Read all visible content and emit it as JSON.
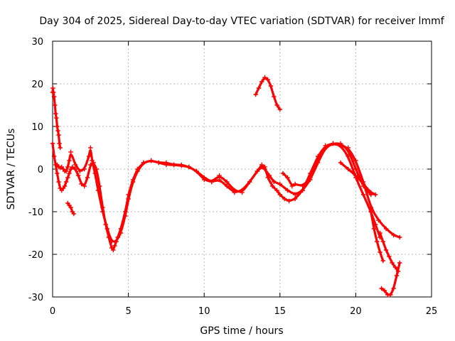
{
  "chart_data": {
    "type": "scatter",
    "title": "Day 304 of 2025, Sidereal Day-to-day VTEC variation (SDTVAR) for receiver lmmf",
    "xlabel": "GPS time / hours",
    "ylabel": "SDTVAR / TECUs",
    "xlim": [
      0,
      25
    ],
    "ylim": [
      -30,
      30
    ],
    "xticks": [
      0,
      5,
      10,
      15,
      20,
      25
    ],
    "yticks": [
      -30,
      -20,
      -10,
      0,
      10,
      20,
      30
    ],
    "xtick_labels": [
      "0",
      "5",
      "10",
      "15",
      "20",
      "25"
    ],
    "ytick_labels": [
      "-30",
      "-20",
      "-10",
      "0",
      "10",
      "20",
      "30"
    ],
    "grid": true,
    "legend": "none",
    "marker": "plus",
    "color": "#ff0000",
    "series": [
      {
        "name": "track-main",
        "x": [
          0.0,
          0.1,
          0.2,
          0.3,
          0.4,
          0.5,
          0.6,
          0.7,
          0.8,
          0.9,
          1.0,
          1.1,
          1.2,
          1.3,
          1.5,
          1.7,
          1.9,
          2.1,
          2.3,
          2.5,
          2.7,
          2.9,
          3.1,
          3.3,
          3.5,
          3.7,
          3.9,
          4.0,
          4.1,
          4.3,
          4.5,
          4.8,
          5.0,
          5.3,
          5.6,
          6.0,
          6.5,
          7.0,
          7.5,
          8.0,
          8.5,
          9.0,
          9.5,
          10.0,
          10.5,
          11.0,
          11.5,
          12.0,
          12.5,
          13.0,
          13.5,
          13.8,
          14.0,
          14.2,
          14.5,
          14.8,
          15.0,
          15.3,
          15.6,
          16.0,
          16.5,
          17.0,
          17.5,
          18.0,
          18.5,
          19.0,
          19.5,
          20.0,
          20.5,
          21.0,
          21.3,
          21.6
        ],
        "y": [
          6.0,
          3.0,
          1.0,
          -1.0,
          -3.0,
          -4.5,
          -5.0,
          -4.5,
          -4.0,
          -3.0,
          -2.0,
          -1.0,
          0.0,
          0.5,
          0.0,
          -1.5,
          -3.5,
          -4.0,
          -2.0,
          1.0,
          1.5,
          0.0,
          -4.0,
          -9.0,
          -13.0,
          -16.0,
          -18.5,
          -19.0,
          -18.0,
          -16.0,
          -14.0,
          -10.0,
          -6.0,
          -2.5,
          0.0,
          1.5,
          2.0,
          1.5,
          1.0,
          1.0,
          0.8,
          0.5,
          -0.5,
          -2.0,
          -3.0,
          -2.5,
          -4.0,
          -5.5,
          -5.0,
          -3.0,
          -0.5,
          1.0,
          0.5,
          -2.0,
          -4.0,
          -5.0,
          -6.0,
          -7.0,
          -7.5,
          -7.0,
          -5.0,
          -1.0,
          3.0,
          5.5,
          6.0,
          5.5,
          3.0,
          -2.0,
          -6.0,
          -10.0,
          -13.0,
          -16.0
        ]
      },
      {
        "name": "track-secondary",
        "x": [
          0.3,
          0.4,
          0.5,
          0.6,
          0.7,
          0.8,
          0.9,
          1.0,
          1.1,
          1.2,
          1.5,
          1.8,
          2.1,
          2.4,
          2.5,
          2.6,
          2.8,
          3.0,
          3.3,
          3.6,
          3.9,
          4.2,
          4.5,
          4.8,
          5.0,
          5.3,
          5.6,
          6.0,
          6.5,
          7.0,
          7.5,
          8.0,
          8.5,
          9.0,
          9.5,
          10.0,
          10.5,
          11.0,
          11.5,
          12.0,
          12.5,
          13.0,
          13.5,
          13.8,
          14.0,
          14.3,
          14.6,
          15.0,
          15.5,
          16.0,
          16.5,
          17.0,
          17.5,
          18.0,
          18.5,
          19.0,
          19.5,
          20.0,
          20.5,
          21.0
        ],
        "y": [
          1.0,
          0.5,
          0.3,
          0.5,
          0.0,
          -0.5,
          -0.5,
          0.5,
          2.0,
          4.0,
          1.0,
          -0.5,
          0.0,
          3.0,
          5.0,
          2.0,
          -1.0,
          -5.0,
          -10.0,
          -14.0,
          -17.0,
          -17.0,
          -15.0,
          -11.0,
          -7.0,
          -3.0,
          -0.5,
          1.5,
          2.0,
          1.5,
          1.5,
          1.0,
          1.0,
          0.5,
          -0.5,
          -2.5,
          -3.0,
          -1.5,
          -3.0,
          -5.0,
          -5.5,
          -3.0,
          -0.5,
          0.5,
          0.0,
          -1.5,
          -3.0,
          -3.5,
          -5.0,
          -6.0,
          -5.0,
          -2.5,
          1.5,
          5.0,
          6.0,
          6.0,
          4.5,
          0.0,
          -4.0,
          -6.0
        ]
      },
      {
        "name": "track-tertiary",
        "x": [
          15.2,
          15.5,
          15.8,
          16.0,
          16.5,
          17.0,
          17.5,
          18.0,
          18.5,
          19.0,
          19.5,
          20.0,
          20.5,
          21.0,
          21.5,
          22.0,
          22.5,
          22.9
        ],
        "y": [
          -1.0,
          -2.0,
          -4.0,
          -3.5,
          -4.0,
          -2.0,
          2.0,
          5.0,
          6.0,
          5.5,
          5.0,
          2.0,
          -3.0,
          -9.0,
          -12.0,
          -14.0,
          -15.5,
          -16.0
        ]
      },
      {
        "name": "track-tertiary-2",
        "x": [
          19.0,
          19.5,
          20.0,
          20.5,
          21.0,
          21.3
        ],
        "y": [
          1.5,
          0.0,
          -1.5,
          -3.5,
          -5.5,
          -6.0
        ]
      },
      {
        "name": "early-spike",
        "x": [
          0.0,
          0.02,
          0.05,
          0.1,
          0.15,
          0.2,
          0.25,
          0.3,
          0.35,
          0.4,
          0.45,
          0.5
        ],
        "y": [
          18.0,
          19.0,
          18.0,
          17.0,
          15.0,
          13.0,
          12.0,
          10.0,
          9.0,
          8.0,
          6.0,
          5.0
        ]
      },
      {
        "name": "early-drop",
        "x": [
          1.0,
          1.1,
          1.2,
          1.3,
          1.4
        ],
        "y": [
          -8.0,
          -8.5,
          -9.0,
          -10.0,
          -10.5
        ]
      },
      {
        "name": "arc-near-14h",
        "x": [
          13.4,
          13.6,
          13.8,
          14.0,
          14.2,
          14.4,
          14.6,
          14.8,
          15.0
        ],
        "y": [
          17.5,
          19.0,
          20.5,
          21.5,
          21.0,
          19.5,
          17.0,
          15.0,
          14.0
        ]
      },
      {
        "name": "tail-drop-1",
        "x": [
          21.0,
          21.2,
          21.4,
          21.6,
          21.8
        ],
        "y": [
          -10.0,
          -14.0,
          -17.0,
          -19.5,
          -21.5
        ]
      },
      {
        "name": "tail-drop-2",
        "x": [
          21.7,
          21.9,
          22.1,
          22.3,
          22.5,
          22.7,
          22.9
        ],
        "y": [
          -28.0,
          -28.5,
          -29.5,
          -29.5,
          -28.0,
          -25.0,
          -22.0
        ]
      },
      {
        "name": "tail-drop-3",
        "x": [
          21.6,
          21.8,
          22.0,
          22.2,
          22.4,
          22.6,
          22.8
        ],
        "y": [
          -15.0,
          -17.0,
          -19.0,
          -20.5,
          -22.0,
          -23.0,
          -24.0
        ]
      }
    ]
  }
}
